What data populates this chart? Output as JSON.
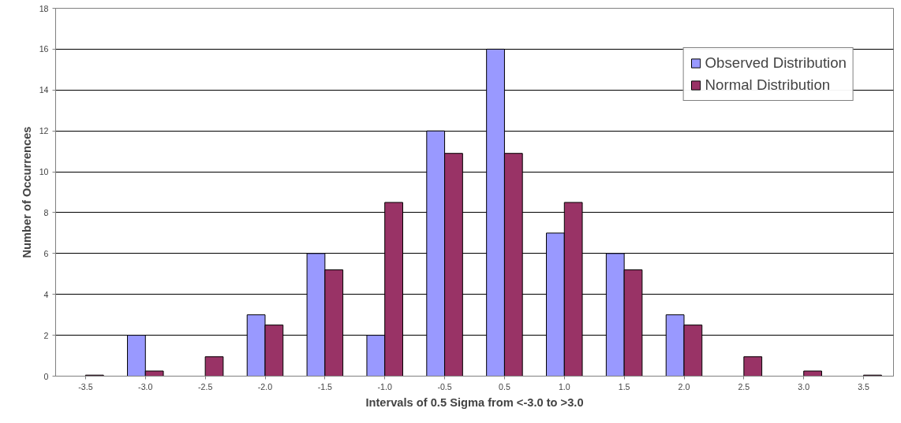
{
  "chart_data": {
    "type": "bar",
    "xlabel": "Intervals of 0.5 Sigma from <-3.0 to >3.0",
    "ylabel": "Number of Occurrences",
    "categories": [
      "-3.5",
      "-3.0",
      "-2.5",
      "-2.0",
      "-1.5",
      "-1.0",
      "-0.5",
      "0.5",
      "1.0",
      "1.5",
      "2.0",
      "2.5",
      "3.0",
      "3.5"
    ],
    "series": [
      {
        "name": "Observed Distribution",
        "color": "#9999ff",
        "values": [
          null,
          2,
          null,
          3,
          6,
          2,
          12,
          16,
          7,
          6,
          3,
          null,
          null,
          null
        ]
      },
      {
        "name": "Normal Distribution",
        "color": "#993366",
        "values": [
          0.05,
          0.25,
          0.95,
          2.5,
          5.2,
          8.5,
          10.9,
          10.9,
          8.5,
          5.2,
          2.5,
          0.95,
          0.25,
          0.05
        ]
      }
    ],
    "ylim": [
      0,
      18
    ],
    "yticks": [
      0,
      2,
      4,
      6,
      8,
      10,
      12,
      14,
      16,
      18
    ],
    "grid": "y",
    "legend": "top right"
  }
}
